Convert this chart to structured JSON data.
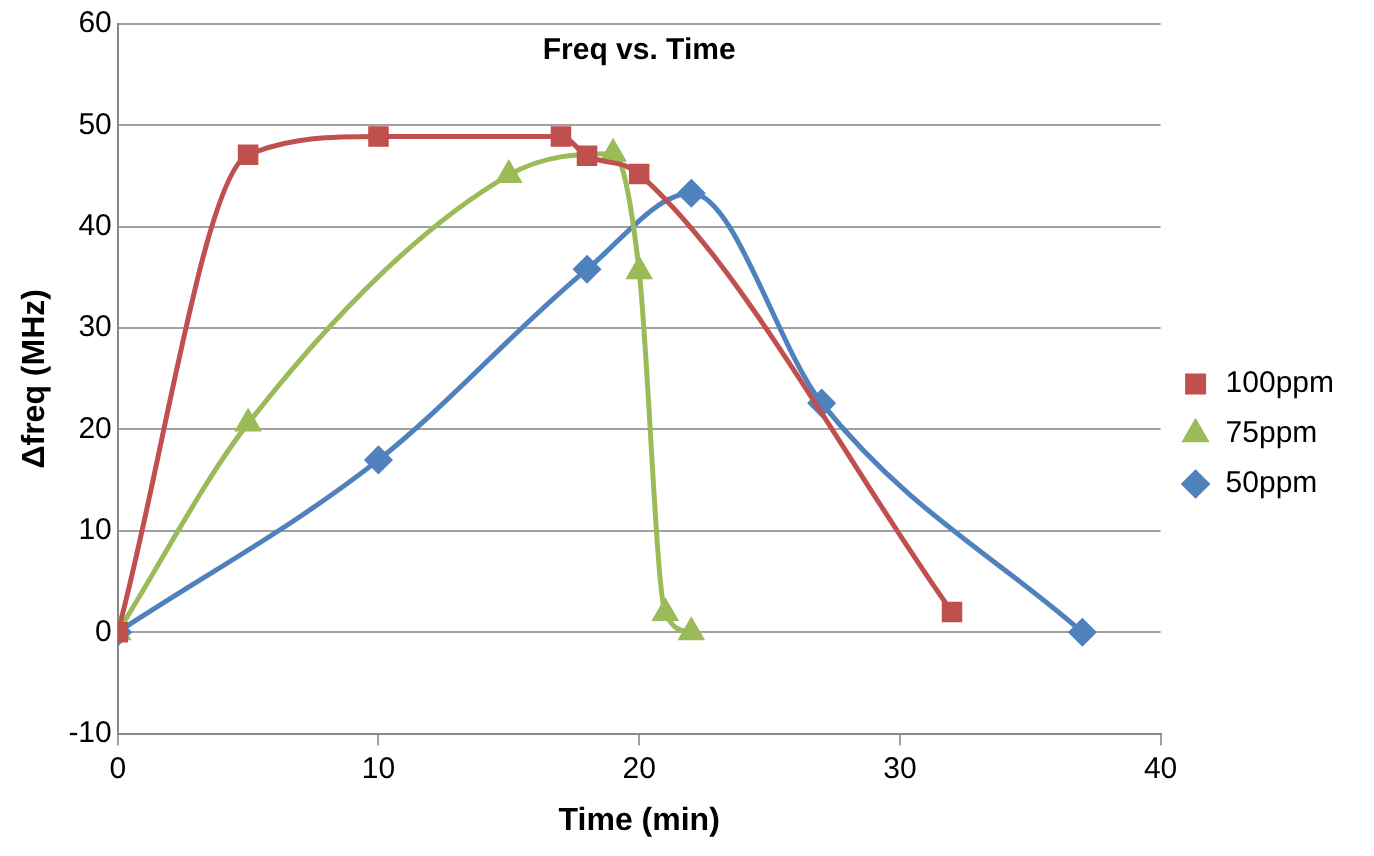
{
  "chart_data": {
    "type": "line",
    "title": "Freq vs. Time",
    "xlabel": "Time (min)",
    "ylabel": "Δfreq (MHz)",
    "xlim": [
      0,
      40
    ],
    "xticks": [
      0,
      10,
      20,
      30,
      40
    ],
    "ylim": [
      -10,
      60
    ],
    "yticks": [
      -10,
      0,
      10,
      20,
      30,
      40,
      50,
      60
    ],
    "grid": "y",
    "legend": "right",
    "series": [
      {
        "name": "100ppm",
        "color": "#c0504d",
        "marker": "square",
        "x": [
          0,
          5,
          10,
          17,
          18,
          20,
          32
        ],
        "values": [
          0,
          47.1,
          48.9,
          48.9,
          47,
          45.2,
          2
        ]
      },
      {
        "name": "75ppm",
        "color": "#9bbb59",
        "marker": "triangle",
        "x": [
          0,
          5,
          15,
          19,
          20,
          21,
          22
        ],
        "values": [
          0,
          20.6,
          45.1,
          47.2,
          35.6,
          1.9,
          0
        ]
      },
      {
        "name": "50ppm",
        "color": "#4f81bd",
        "marker": "diamond",
        "x": [
          0,
          10,
          18,
          22,
          27,
          37
        ],
        "values": [
          0,
          17,
          35.8,
          43.3,
          22.6,
          0
        ]
      }
    ]
  }
}
